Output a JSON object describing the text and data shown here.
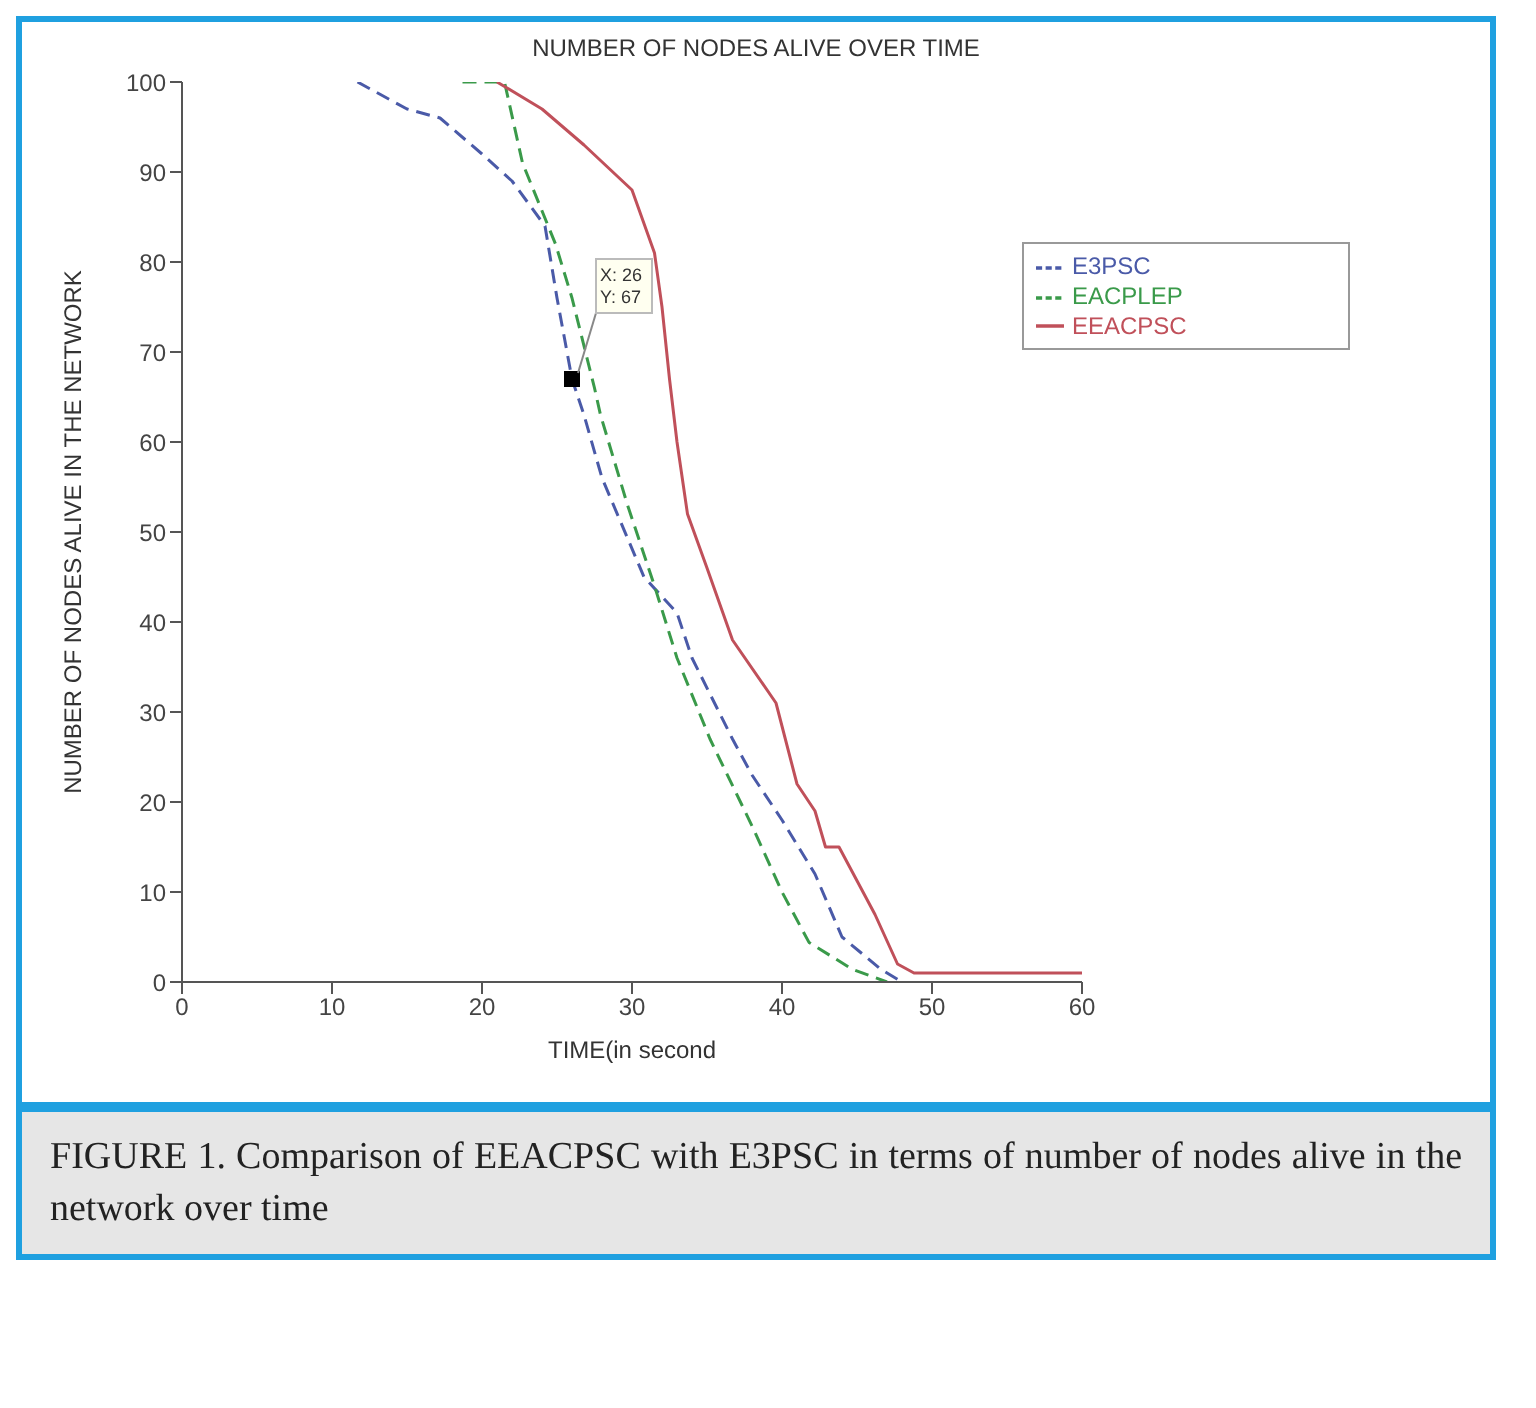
{
  "chart_data": {
    "type": "line",
    "title": "NUMBER OF NODES ALIVE OVER TIME",
    "xlabel": "TIME(in second",
    "ylabel": "NUMBER OF NODES ALIVE IN THE NETWORK",
    "xlim": [
      0,
      60
    ],
    "xticks": [
      0,
      10,
      20,
      30,
      40,
      50,
      60
    ],
    "ylim": [
      0,
      100
    ],
    "yticks": [
      0,
      10,
      20,
      30,
      40,
      50,
      60,
      70,
      80,
      90,
      100
    ],
    "legend": "top right",
    "marker": "none",
    "series": [
      {
        "name": "E3PSC",
        "color": "#4a5aa8",
        "line_style": "dashed",
        "x": [
          11.7,
          15,
          17.2,
          20,
          22,
          24.2,
          25,
          26,
          26.8,
          28,
          30.8,
          33,
          34,
          36.7,
          38,
          40,
          42.2,
          44,
          46.6,
          48
        ],
        "values": [
          100,
          97,
          96,
          92,
          89,
          84,
          76,
          67,
          63,
          56,
          45,
          41,
          36,
          27,
          23,
          18,
          12,
          5,
          1.4,
          0
        ]
      },
      {
        "name": "EACPLEP",
        "color": "#3a9a4a",
        "line_style": "dashed",
        "x": [
          18.7,
          21.5,
          22.7,
          24.9,
          26,
          27.5,
          27.9,
          29.7,
          31.5,
          33,
          35.2,
          38.1,
          40,
          41.8,
          44.7,
          47
        ],
        "values": [
          100,
          100,
          91,
          82,
          76,
          66,
          63,
          53,
          44,
          36,
          27,
          17,
          10,
          4.4,
          1.4,
          0
        ]
      },
      {
        "name": "EEACPSC",
        "color": "#c0505a",
        "line_style": "solid",
        "x": [
          21,
          24,
          26.8,
          30,
          31.5,
          32,
          32.5,
          33,
          33.7,
          35,
          36.7,
          39.6,
          41,
          42.2,
          42.9,
          43.8,
          46.2,
          47.7,
          48.8,
          60
        ],
        "values": [
          100,
          97,
          93,
          88,
          81,
          75,
          67,
          60,
          52,
          46,
          38,
          31,
          22,
          19,
          15,
          15,
          7.5,
          2,
          1,
          1
        ]
      }
    ],
    "annotations": [
      {
        "text": "X: 26\nY: 67",
        "x": 26,
        "y": 67
      },
      "FIGURE 1. Comparison of EEACPSC with E3PSC in terms of number of nodes alive in the network over time"
    ]
  }
}
